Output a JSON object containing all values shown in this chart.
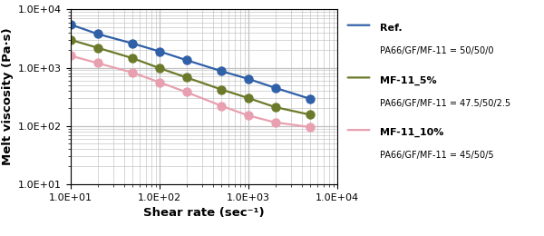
{
  "series": [
    {
      "label1": "Ref.",
      "label2": "PA66/GF/MF-11 = 50/50/0",
      "color": "#3060a8",
      "x": [
        10,
        20,
        50,
        100,
        200,
        500,
        1000,
        2000,
        5000
      ],
      "y": [
        5500,
        3800,
        2600,
        1900,
        1350,
        870,
        640,
        450,
        290
      ]
    },
    {
      "label1": "MF-11_5%",
      "label2": "PA66/GF/MF-11 = 47.5/50/2.5",
      "color": "#6b7a2a",
      "x": [
        10,
        20,
        50,
        100,
        200,
        500,
        1000,
        2000,
        5000
      ],
      "y": [
        3000,
        2200,
        1450,
        980,
        680,
        420,
        300,
        210,
        155
      ]
    },
    {
      "label1": "MF-11_10%",
      "label2": "PA66/GF/MF-11 = 45/50/5",
      "color": "#e8a0b0",
      "x": [
        10,
        20,
        50,
        100,
        200,
        500,
        1000,
        2000,
        5000
      ],
      "y": [
        1600,
        1200,
        820,
        560,
        380,
        220,
        150,
        115,
        95
      ]
    }
  ],
  "xlabel": "Shear rate (sec⁻¹)",
  "ylabel": "Melt viscosity (Pa·s)",
  "xlim": [
    10,
    10000
  ],
  "ylim": [
    10,
    10000
  ],
  "grid_color": "#c0c0c0",
  "bg_color": "#ffffff",
  "legend_fontsize": 7.5,
  "axis_label_fontsize": 9.5,
  "tick_fontsize": 8,
  "line_width": 1.6,
  "marker_size": 6.5
}
